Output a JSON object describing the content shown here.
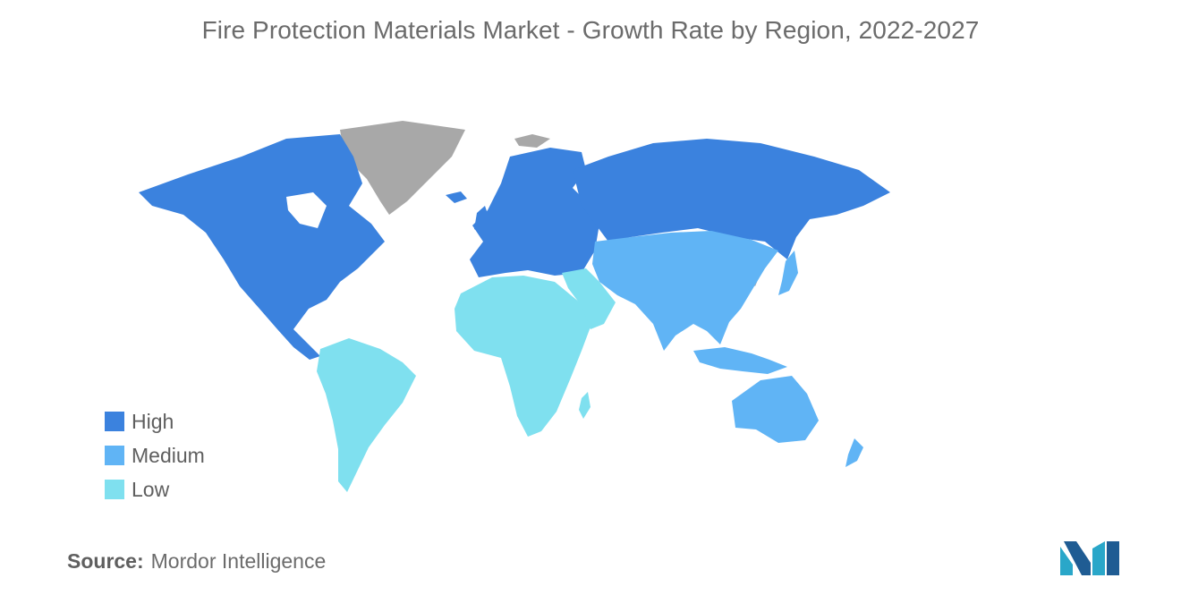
{
  "title": "Fire Protection Materials Market - Growth Rate by Region, 2022-2027",
  "legend": [
    {
      "label": "High",
      "color": "#3b82de"
    },
    {
      "label": "Medium",
      "color": "#60b4f5"
    },
    {
      "label": "Low",
      "color": "#7fe0ef"
    }
  ],
  "no_data_color": "#a8a8a8",
  "source": {
    "label": "Source:",
    "value": "Mordor Intelligence"
  },
  "logo": {
    "icon": "mordor-intelligence-logo",
    "colors": [
      "#2aa7c9",
      "#1f5c93"
    ]
  }
}
